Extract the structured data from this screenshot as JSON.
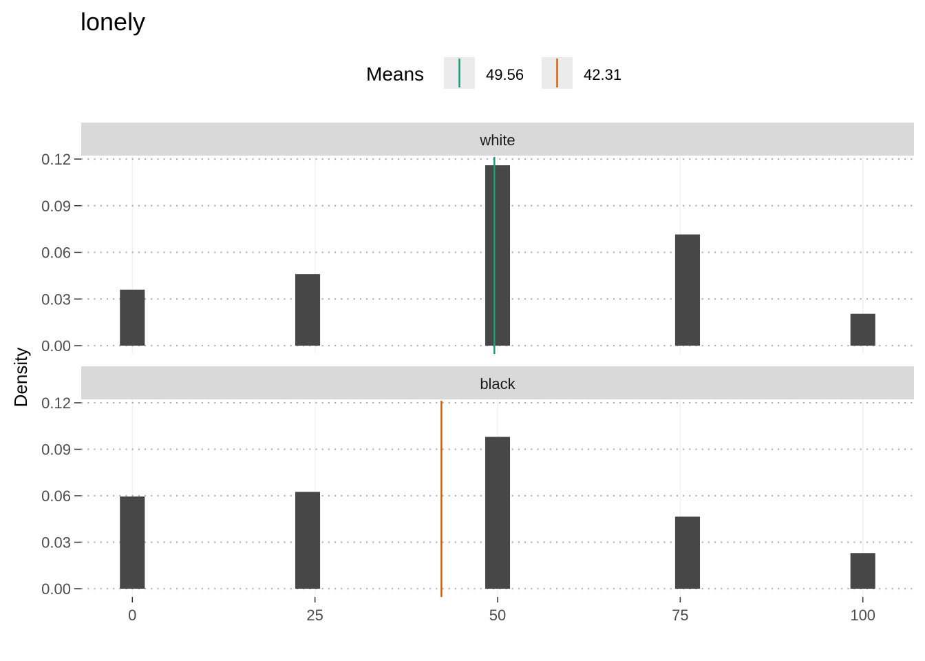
{
  "chart_data": {
    "type": "bar",
    "title": "lonely",
    "ylabel": "Density",
    "xlabel": "",
    "x_ticks": [
      0,
      25,
      50,
      75,
      100
    ],
    "y_ticks": [
      0,
      0.03,
      0.06,
      0.09,
      0.12
    ],
    "y_tick_labels": [
      "0.00",
      "0.03",
      "0.06",
      "0.09",
      "0.12"
    ],
    "xlim": [
      -7,
      107
    ],
    "ylim": [
      0,
      0.121
    ],
    "bar_width": 3.4,
    "grid": "horizontal dotted",
    "legend": {
      "title": "Means",
      "position": "top",
      "entries": [
        {
          "label": "49.56",
          "color": "#1b9e77"
        },
        {
          "label": "42.31",
          "color": "#d95f02"
        }
      ]
    },
    "panels": [
      {
        "strip": "white",
        "x": [
          0,
          24,
          50,
          76,
          100
        ],
        "values": [
          0.036,
          0.046,
          0.116,
          0.0715,
          0.0205
        ],
        "mean": 49.56,
        "mean_color": "#1b9e77"
      },
      {
        "strip": "black",
        "x": [
          0,
          24,
          50,
          76,
          100
        ],
        "values": [
          0.0595,
          0.0625,
          0.098,
          0.0465,
          0.023
        ],
        "mean": 42.31,
        "mean_color": "#d95f02"
      }
    ],
    "bar_color": "#474747"
  }
}
